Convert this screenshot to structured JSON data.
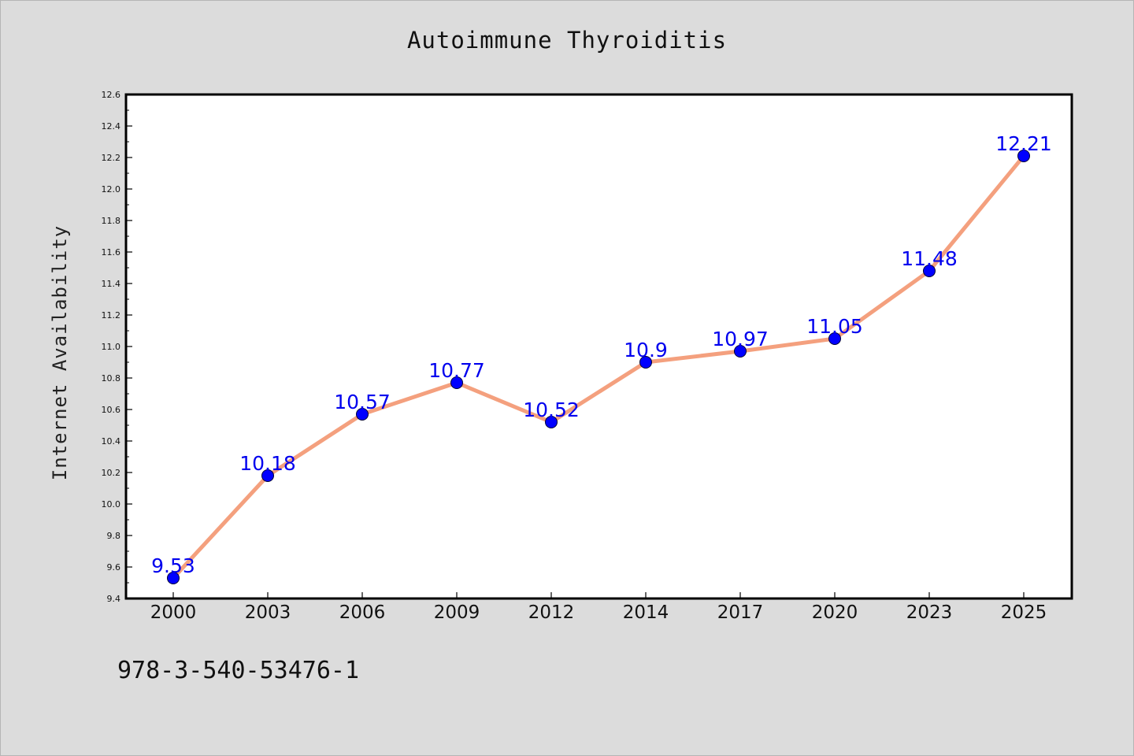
{
  "chart_data": {
    "type": "line",
    "title": "Autoimmune Thyroiditis",
    "ylabel": "Internet Availability",
    "xlabel": "",
    "categories": [
      "2000",
      "2003",
      "2006",
      "2009",
      "2012",
      "2014",
      "2017",
      "2020",
      "2023",
      "2025"
    ],
    "series": [
      {
        "values": [
          9.53,
          10.18,
          10.57,
          10.77,
          10.52,
          10.9,
          10.97,
          11.05,
          11.48,
          12.21
        ]
      }
    ],
    "data_labels": [
      "9.53",
      "10.18",
      "10.57",
      "10.77",
      "10.52",
      "10.9",
      "10.97",
      "11.05",
      "11.48",
      "12.21"
    ],
    "ylim": [
      9.4,
      12.6
    ],
    "y_tick_labels": [
      "9.4",
      "9.6",
      "9.8",
      "10.0",
      "10.2",
      "10.4",
      "10.6",
      "10.8",
      "11.0",
      "11.2",
      "11.4",
      "11.6",
      "11.8",
      "12.0",
      "12.2",
      "12.4",
      "12.6"
    ],
    "grid": false,
    "legend": "none",
    "colors": {
      "line": "#f4a07e",
      "marker": "#0000ff",
      "data_label": "#0000ee",
      "background": "#dcdcdc",
      "plot_area": "#ffffff"
    }
  },
  "footer": {
    "code": "978-3-540-53476-1"
  }
}
